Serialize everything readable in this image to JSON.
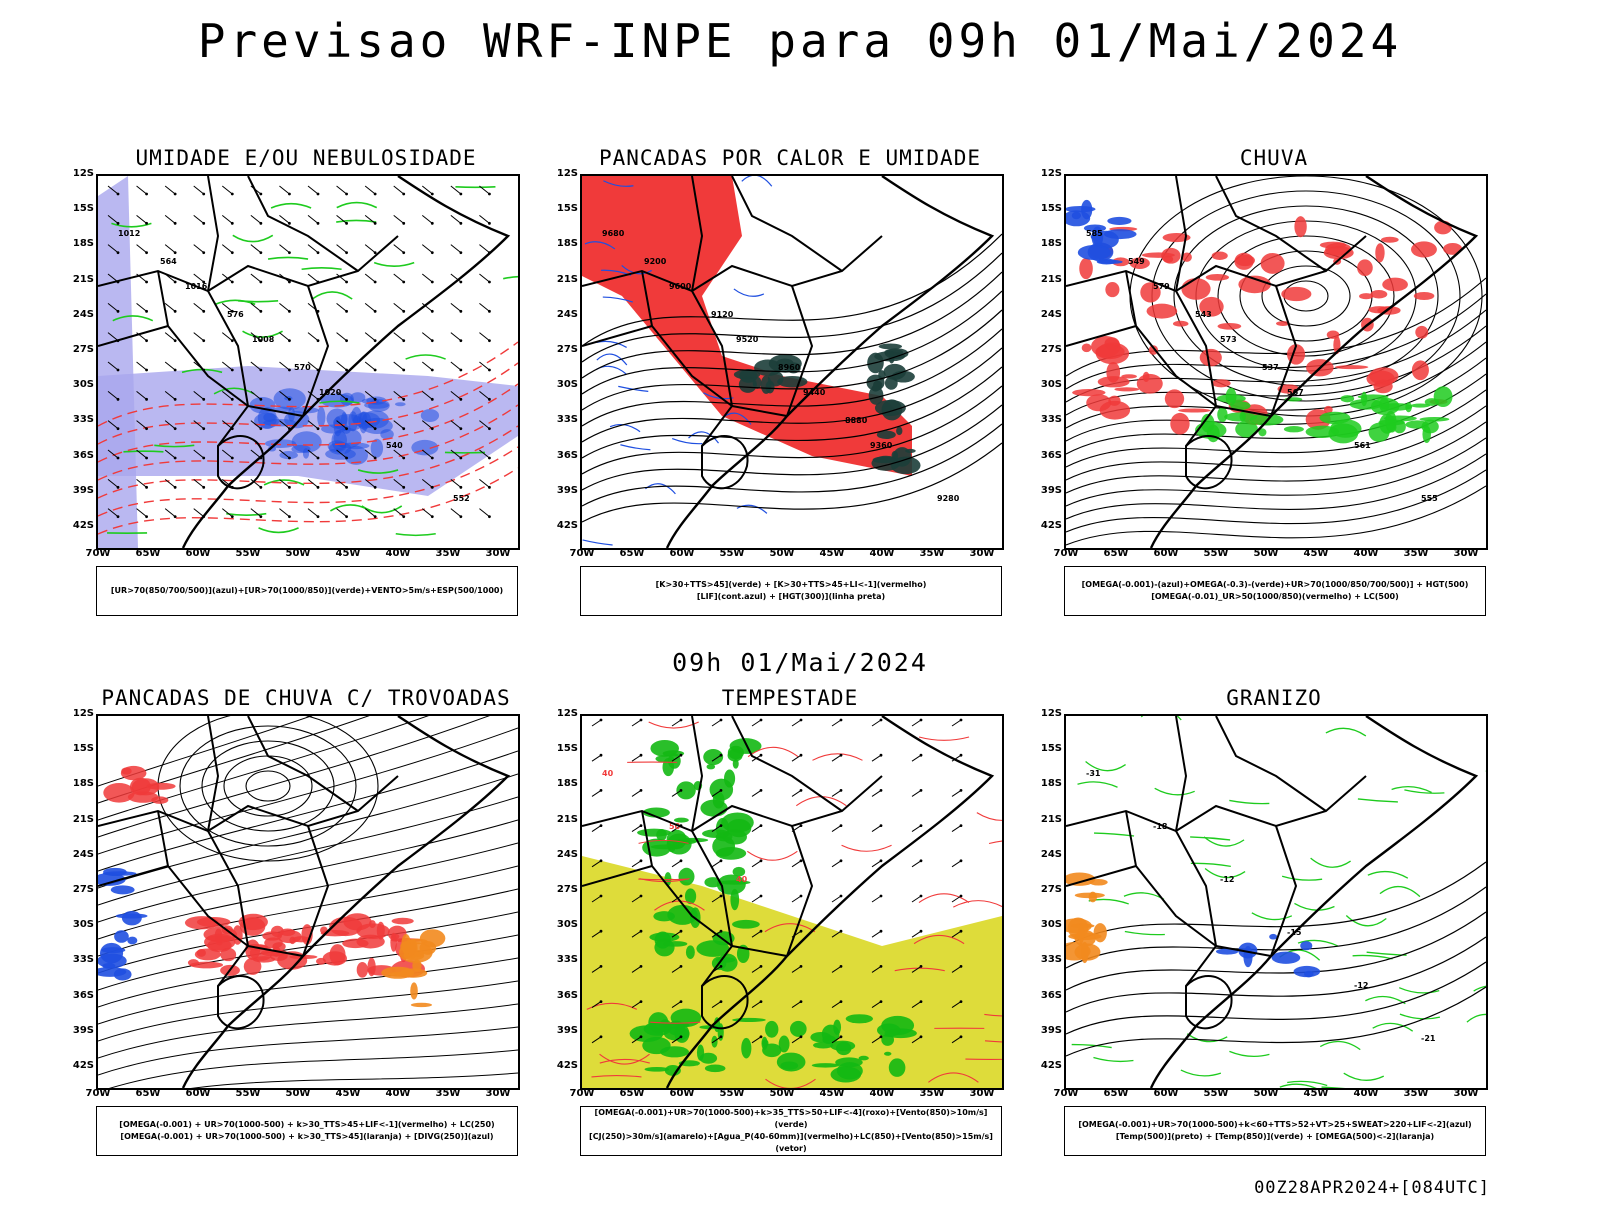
{
  "title": "Previsao WRF-INPE  para 09h 01/Mai/2024",
  "mid_date": "09h 01/Mai/2024",
  "footer": "00Z28APR2024+[084UTC]",
  "lat_labels": [
    "12S",
    "15S",
    "18S",
    "21S",
    "24S",
    "27S",
    "30S",
    "33S",
    "36S",
    "39S",
    "42S"
  ],
  "lon_labels": [
    "70W",
    "65W",
    "60W",
    "55W",
    "50W",
    "45W",
    "40W",
    "35W",
    "30W"
  ],
  "colors": {
    "red": "#f03a3a",
    "green": "#1ecb1e",
    "blue": "#1f4fe0",
    "lightblue": "#a9a6ee",
    "darkgreen": "#1c3e3a",
    "yellow": "#dedc3a",
    "orange": "#f28a1e",
    "shower_green": "#13b813"
  },
  "panels": [
    {
      "title": "UMIDADE E/OU NEBULOSIDADE",
      "legend": [
        "[UR>70(850/700/500)](azul)+[UR>70(1000/850)](verde)+VENTO>5m/s+ESP(500/1000)"
      ],
      "labels": [
        "1012",
        "1016",
        "1008",
        "1020",
        "540",
        "552",
        "564",
        "576",
        "570"
      ]
    },
    {
      "title": "PANCADAS POR CALOR E UMIDADE",
      "legend": [
        "[K>30+TTS>45](verde) + [K>30+TTS>45+LI<-1](vermelho)",
        "[LIF](cont.azul) + [HGT(300)](linha preta)"
      ],
      "labels": [
        "9680",
        "9600",
        "9520",
        "9440",
        "9360",
        "9280",
        "9200",
        "9120",
        "8960",
        "8880"
      ]
    },
    {
      "title": "CHUVA",
      "legend": [
        "[OMEGA(-0.001)-(azul)+OMEGA(-0.3)-(verde)+UR>70(1000/850/700/500)] + HGT(500)",
        "[OMEGA(-0.01)_UR>50(1000/850)(vermelho) + LC(500)"
      ],
      "labels": [
        "585",
        "579",
        "573",
        "567",
        "561",
        "555",
        "549",
        "543",
        "537"
      ]
    },
    {
      "title": "PANCADAS DE CHUVA C/ TROVOADAS",
      "legend": [
        "[OMEGA(-0.001) + UR>70(1000-500) + k>30_TTS>45+LIF<-1](vermelho) + LC(250)",
        "[OMEGA(-0.001) + UR>70(1000-500) + k>30_TTS>45](laranja) + [DIVG(250)](azul)"
      ],
      "labels": []
    },
    {
      "title": "TEMPESTADE",
      "legend": [
        "[OMEGA(-0.001)+UR>70(1000-500)+k>35_TTS>50+LIF<-4](roxo)+[Vento(850)>10m/s](verde)",
        "[CJ(250)>30m/s](amarelo)+[Agua_P(40-60mm)](vermelho)+LC(850)+[Vento(850)>15m/s](vetor)"
      ],
      "labels": [
        "40",
        "50",
        "40"
      ]
    },
    {
      "title": "GRANIZO",
      "legend": [
        "[OMEGA(-0.001)+UR>70(1000-500)+k<60+TTS>52+VT>25+SWEAT>220+LIF<-2](azul)",
        "[Temp(500)](preto) + [Temp(850)](verde) + [OMEGA(500)<-2](laranja)"
      ],
      "labels": [
        "-31",
        "-18",
        "-12",
        "-15",
        "-12",
        "-21"
      ]
    }
  ]
}
